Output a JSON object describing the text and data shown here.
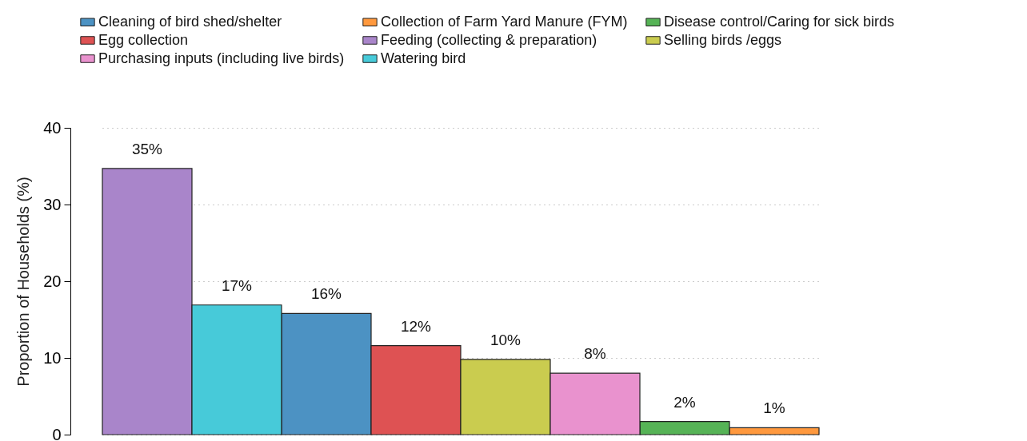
{
  "chart_data": {
    "type": "bar",
    "ylabel": "Proportion of Households (%)",
    "categories": [
      null,
      null,
      null,
      null,
      null,
      null,
      null,
      null
    ],
    "ylim": [
      0,
      40
    ],
    "yticks": [
      0,
      10,
      20,
      30,
      40
    ],
    "grid": "y",
    "legend": "top left",
    "series": [
      {
        "name": "Cleaning of bird shed/shelter",
        "color": "#4c92c3",
        "values": [
          null,
          null,
          15.8,
          null,
          null,
          null,
          null,
          null
        ],
        "value_labels": [
          null,
          null,
          "16%",
          null,
          null,
          null,
          null,
          null
        ]
      },
      {
        "name": "Collection of Farm Yard Manure (FYM)",
        "color": "#ff993e",
        "values": [
          null,
          null,
          null,
          null,
          null,
          null,
          null,
          0.9
        ],
        "value_labels": [
          null,
          null,
          null,
          null,
          null,
          null,
          null,
          "1%"
        ]
      },
      {
        "name": "Disease control/Caring for sick birds",
        "color": "#56b356",
        "values": [
          null,
          null,
          null,
          null,
          null,
          null,
          1.7,
          null
        ],
        "value_labels": [
          null,
          null,
          null,
          null,
          null,
          null,
          "2%",
          null
        ]
      },
      {
        "name": "Egg collection",
        "color": "#de5253",
        "values": [
          null,
          null,
          null,
          11.6,
          null,
          null,
          null,
          null
        ],
        "value_labels": [
          null,
          null,
          null,
          "12%",
          null,
          null,
          null,
          null
        ]
      },
      {
        "name": "Feeding (collecting & preparation)",
        "color": "#a985ca",
        "values": [
          34.7,
          null,
          null,
          null,
          null,
          null,
          null,
          null
        ],
        "value_labels": [
          "35%",
          null,
          null,
          null,
          null,
          null,
          null,
          null
        ]
      },
      {
        "name": "Selling birds /eggs",
        "color": "#cacc4f",
        "values": [
          null,
          null,
          null,
          null,
          9.8,
          null,
          null,
          null
        ],
        "value_labels": [
          null,
          null,
          null,
          null,
          "10%",
          null,
          null,
          null
        ]
      },
      {
        "name": "Purchasing inputs (including live birds)",
        "color": "#e992ce",
        "values": [
          null,
          null,
          null,
          null,
          null,
          8.0,
          null,
          null
        ],
        "value_labels": [
          null,
          null,
          null,
          null,
          null,
          "8%",
          null,
          null
        ]
      },
      {
        "name": "Watering bird",
        "color": "#47cad9",
        "values": [
          null,
          16.9,
          null,
          null,
          null,
          null,
          null,
          null
        ],
        "value_labels": [
          null,
          "17%",
          null,
          null,
          null,
          null,
          null,
          null
        ]
      }
    ]
  }
}
